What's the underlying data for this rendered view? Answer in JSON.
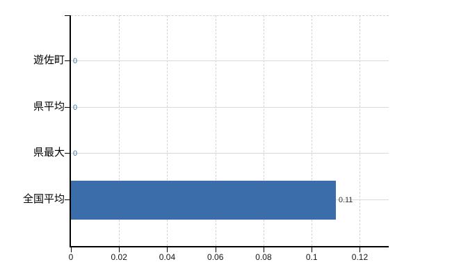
{
  "chart_data": {
    "type": "bar",
    "orientation": "horizontal",
    "title": "",
    "categories": [
      "遊佐町",
      "県平均",
      "県最大",
      "全国平均"
    ],
    "values": [
      0,
      0,
      0,
      0.11
    ],
    "data_labels": [
      "0",
      "0",
      "0",
      "0.11"
    ],
    "x_tick_values": [
      0,
      0.02,
      0.04,
      0.06,
      0.08,
      0.1,
      0.12
    ],
    "x_tick_labels": [
      "0",
      "0.02",
      "0.04",
      "0.06",
      "0.08",
      "0.1",
      "0.12"
    ],
    "xlim": [
      0,
      0.132
    ],
    "grid": true,
    "legend": false
  },
  "colors": {
    "background": "#ffffff",
    "bar": "#3c6dab",
    "axis": "#000000",
    "h_gridline": "#d6dcd3",
    "v_gridline": "#d4d0d8",
    "zero_value_label": "#3f6fae",
    "value_label": "#333333",
    "tick_label": "#141414",
    "category_label": "#000000"
  }
}
